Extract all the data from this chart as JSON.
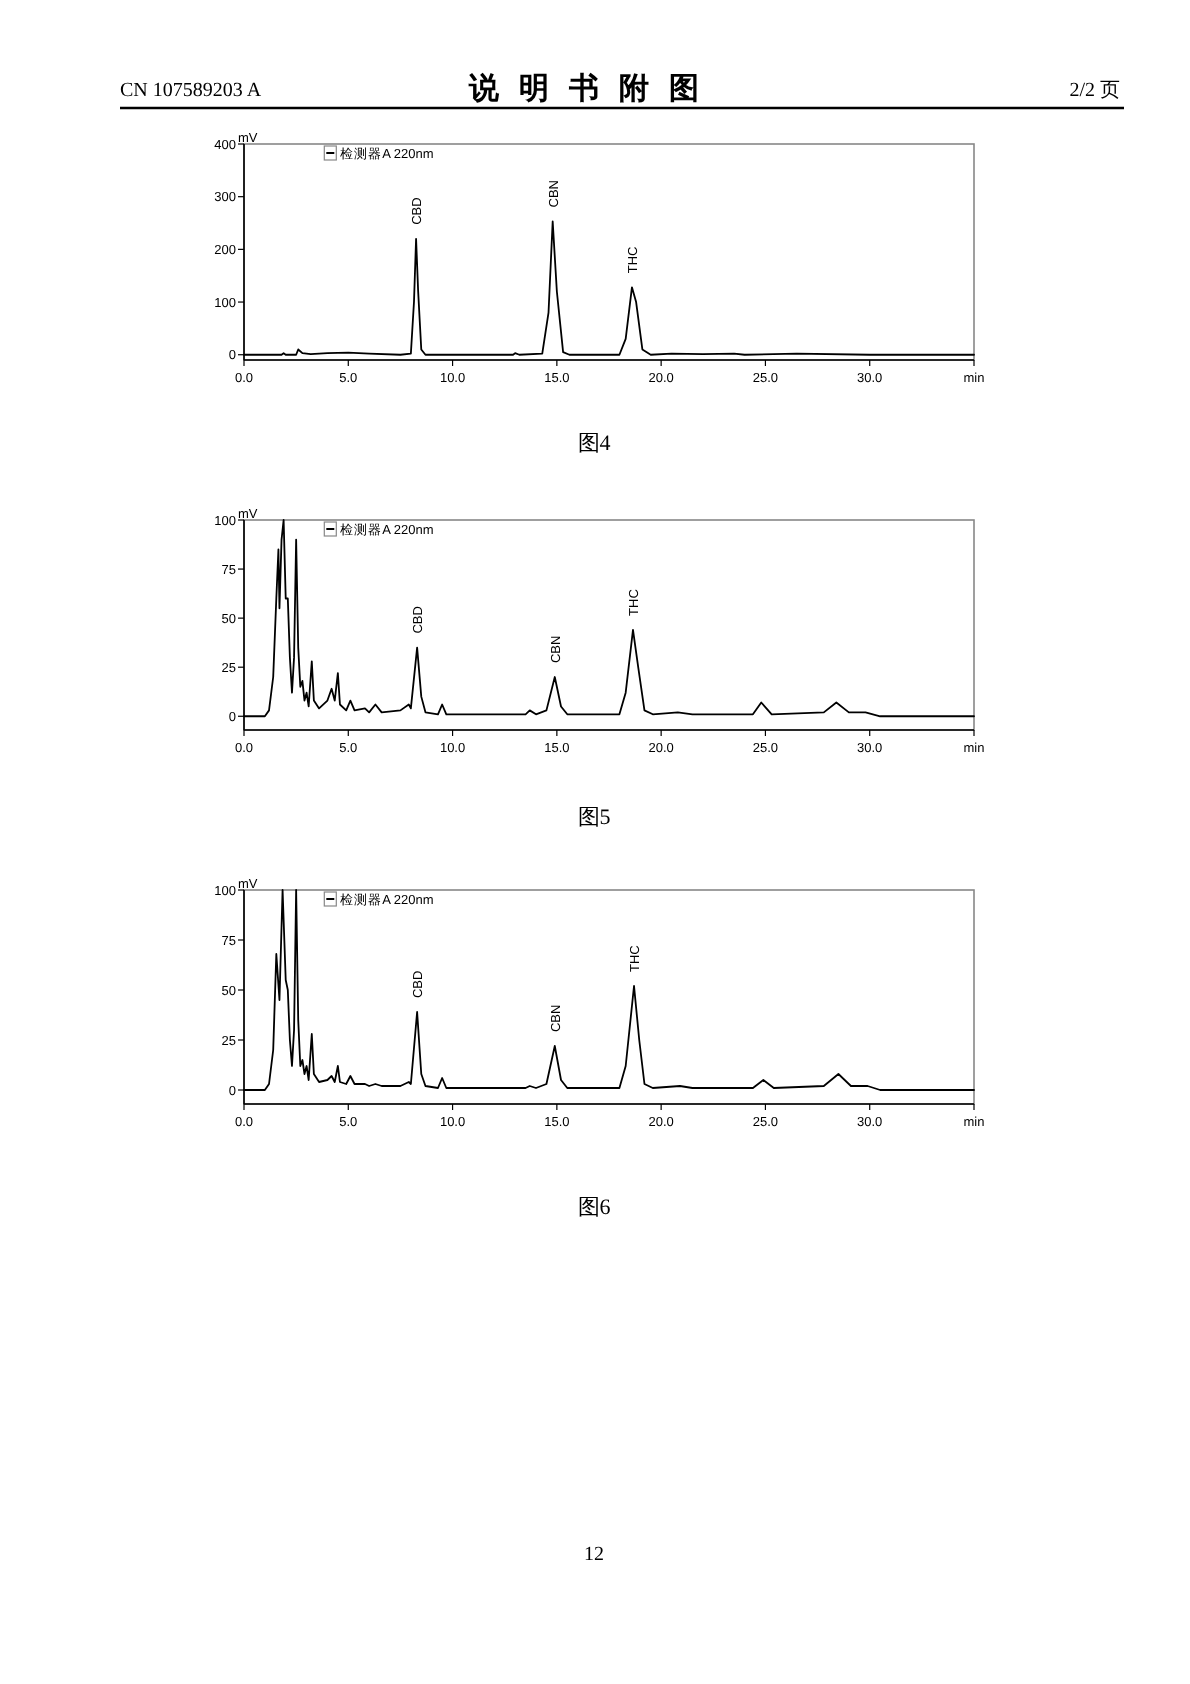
{
  "chart_data": [
    {
      "type": "line",
      "title": "说明书附图",
      "ylabel": "mV",
      "xlim": [
        0,
        35
      ],
      "ylim": [
        -10,
        400
      ],
      "xticks": [
        {
          "value": 0,
          "label": "0.0"
        },
        {
          "value": 5,
          "label": "5.0"
        },
        {
          "value": 10,
          "label": "10.0"
        },
        {
          "value": 15,
          "label": "15.0"
        },
        {
          "value": 20,
          "label": "20.0"
        },
        {
          "value": 25,
          "label": "25.0"
        },
        {
          "value": 30,
          "label": "30.0"
        },
        {
          "value": 35,
          "label": "min"
        }
      ],
      "yticks": [
        0,
        100,
        200,
        300,
        400
      ],
      "legend": "top left",
      "marker": "none",
      "line_style": "solid",
      "x": [
        0,
        1.8,
        1.9,
        2.0,
        2.5,
        2.6,
        2.8,
        3.2,
        4.0,
        5.0,
        6.0,
        7.5,
        8.0,
        8.15,
        8.25,
        8.35,
        8.5,
        8.7,
        10,
        12.9,
        13,
        13.2,
        14.3,
        14.6,
        14.8,
        15.0,
        15.3,
        15.6,
        18.0,
        18.3,
        18.6,
        18.8,
        19.1,
        19.5,
        20.5,
        22,
        23.5,
        24,
        26.5,
        30,
        35
      ],
      "series": [
        {
          "name": "检测器A 220nm",
          "color": "#000000",
          "values": [
            0,
            0,
            3,
            0,
            0,
            10,
            3,
            1,
            3,
            4,
            2,
            0,
            2,
            100,
            220,
            120,
            10,
            0,
            0,
            0,
            3,
            0,
            2,
            80,
            253,
            120,
            5,
            0,
            0,
            30,
            128,
            100,
            10,
            0,
            2,
            1,
            2,
            0,
            2,
            0,
            0
          ]
        }
      ],
      "annotations": [
        "CN 107589203 A",
        "2/2 页",
        "图4",
        {
          "text": "CBD",
          "x": 8.25,
          "y": 220
        },
        {
          "text": "CBN",
          "x": 14.8,
          "y": 253
        },
        {
          "text": "THC",
          "x": 18.6,
          "y": 128
        }
      ]
    },
    {
      "type": "line",
      "ylabel": "mV",
      "xlim": [
        0,
        35
      ],
      "ylim": [
        -7,
        100
      ],
      "xticks": [
        {
          "value": 0,
          "label": "0.0"
        },
        {
          "value": 5,
          "label": "5.0"
        },
        {
          "value": 10,
          "label": "10.0"
        },
        {
          "value": 15,
          "label": "15.0"
        },
        {
          "value": 20,
          "label": "20.0"
        },
        {
          "value": 25,
          "label": "25.0"
        },
        {
          "value": 30,
          "label": "30.0"
        },
        {
          "value": 35,
          "label": "min"
        }
      ],
      "yticks": [
        0,
        25,
        50,
        75,
        100
      ],
      "legend": "top left",
      "marker": "none",
      "line_style": "solid",
      "x": [
        0,
        1.0,
        1.2,
        1.4,
        1.55,
        1.65,
        1.7,
        1.8,
        1.9,
        2.0,
        2.1,
        2.2,
        2.3,
        2.4,
        2.5,
        2.6,
        2.7,
        2.8,
        2.9,
        3.0,
        3.1,
        3.25,
        3.35,
        3.6,
        4.0,
        4.2,
        4.35,
        4.5,
        4.6,
        4.9,
        5.1,
        5.3,
        5.8,
        6.0,
        6.3,
        6.6,
        7.5,
        7.9,
        8.0,
        8.3,
        8.5,
        8.7,
        9.3,
        9.5,
        9.7,
        11,
        13.5,
        13.7,
        14.0,
        14.5,
        14.9,
        15.2,
        15.5,
        18,
        18.3,
        18.65,
        18.9,
        19.2,
        19.6,
        20.8,
        21.5,
        24.4,
        24.8,
        25.3,
        27.8,
        28.4,
        29,
        29.8,
        30.5,
        35
      ],
      "series": [
        {
          "name": "检测器A 220nm",
          "color": "#000000",
          "values": [
            0,
            0,
            3,
            20,
            60,
            85,
            55,
            90,
            100,
            60,
            60,
            30,
            12,
            30,
            90,
            35,
            15,
            18,
            8,
            12,
            5,
            28,
            8,
            4,
            8,
            14,
            8,
            22,
            6,
            3,
            8,
            3,
            4,
            2,
            6,
            2,
            3,
            6,
            4,
            35,
            10,
            2,
            1,
            6,
            1,
            1,
            1,
            3,
            1,
            3,
            20,
            5,
            1,
            1,
            12,
            44,
            25,
            3,
            1,
            2,
            1,
            1,
            7,
            1,
            2,
            7,
            2,
            2,
            0,
            0
          ]
        }
      ],
      "annotations": [
        "图5",
        {
          "text": "CBD",
          "x": 8.3,
          "y": 35
        },
        {
          "text": "CBN",
          "x": 14.9,
          "y": 20
        },
        {
          "text": "THC",
          "x": 18.65,
          "y": 44
        }
      ]
    },
    {
      "type": "line",
      "ylabel": "mV",
      "xlim": [
        0,
        35
      ],
      "ylim": [
        -7,
        100
      ],
      "xticks": [
        {
          "value": 0,
          "label": "0.0"
        },
        {
          "value": 5,
          "label": "5.0"
        },
        {
          "value": 10,
          "label": "10.0"
        },
        {
          "value": 15,
          "label": "15.0"
        },
        {
          "value": 20,
          "label": "20.0"
        },
        {
          "value": 25,
          "label": "25.0"
        },
        {
          "value": 30,
          "label": "30.0"
        },
        {
          "value": 35,
          "label": "min"
        }
      ],
      "yticks": [
        0,
        25,
        50,
        75,
        100
      ],
      "legend": "top left",
      "marker": "none",
      "line_style": "solid",
      "x": [
        0,
        1.0,
        1.2,
        1.4,
        1.55,
        1.7,
        1.85,
        2.0,
        2.1,
        2.2,
        2.3,
        2.4,
        2.5,
        2.6,
        2.7,
        2.8,
        2.9,
        3.0,
        3.1,
        3.25,
        3.35,
        3.6,
        4.0,
        4.2,
        4.35,
        4.5,
        4.6,
        4.9,
        5.1,
        5.3,
        5.8,
        6.0,
        6.3,
        6.6,
        7.5,
        7.9,
        8.0,
        8.3,
        8.5,
        8.7,
        9.3,
        9.5,
        9.7,
        11,
        13.5,
        13.7,
        14.0,
        14.5,
        14.9,
        15.2,
        15.5,
        18,
        18.3,
        18.7,
        18.95,
        19.2,
        19.6,
        20.9,
        21.5,
        24.4,
        24.9,
        25.4,
        27.8,
        28.5,
        29.1,
        29.9,
        30.5,
        35
      ],
      "series": [
        {
          "name": "检测器A 220nm",
          "color": "#000000",
          "values": [
            0,
            0,
            3,
            20,
            68,
            45,
            100,
            55,
            50,
            25,
            12,
            30,
            100,
            35,
            12,
            15,
            8,
            12,
            5,
            28,
            8,
            4,
            5,
            7,
            4,
            12,
            4,
            3,
            7,
            3,
            3,
            2,
            3,
            2,
            2,
            4,
            3,
            39,
            8,
            2,
            1,
            6,
            1,
            1,
            1,
            2,
            1,
            3,
            22,
            5,
            1,
            1,
            12,
            52,
            25,
            3,
            1,
            2,
            1,
            1,
            5,
            1,
            2,
            8,
            2,
            2,
            0,
            0
          ]
        }
      ],
      "annotations": [
        "图6",
        "12",
        {
          "text": "CBD",
          "x": 8.3,
          "y": 39
        },
        {
          "text": "CBN",
          "x": 14.9,
          "y": 22
        },
        {
          "text": "THC",
          "x": 18.7,
          "y": 52
        }
      ]
    }
  ]
}
